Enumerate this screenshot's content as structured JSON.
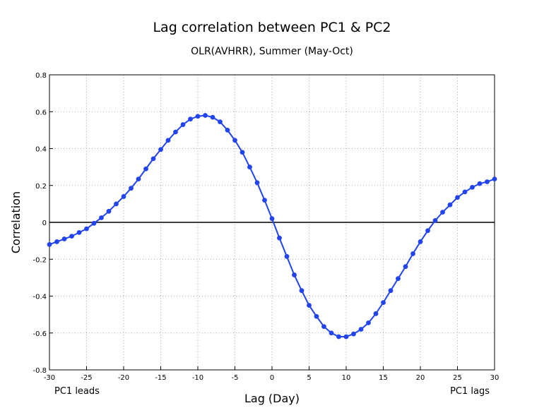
{
  "chart_data": {
    "type": "line",
    "title": "Lag correlation between PC1 & PC2",
    "subtitle": "OLR(AVHRR), Summer (May-Oct)",
    "xlabel": "Lag (Day)",
    "ylabel": "Correlation",
    "xlim": [
      -30,
      30
    ],
    "ylim": [
      -0.8,
      0.8
    ],
    "grid": true,
    "x_ticks": [
      -30,
      -25,
      -20,
      -15,
      -10,
      -5,
      0,
      5,
      10,
      15,
      20,
      25,
      30
    ],
    "x_tick_labels": [
      "-30",
      "-25",
      "-20",
      "-15",
      "-10",
      "-5",
      "0",
      "5",
      "10",
      "15",
      "20",
      "25",
      "30"
    ],
    "y_ticks": [
      -0.8,
      -0.6,
      -0.4,
      -0.2,
      0,
      0.2,
      0.4,
      0.6,
      0.8
    ],
    "y_tick_labels": [
      "-0.8",
      "-0.6",
      "-0.4",
      "-0.2",
      "0",
      "0.2",
      "0.4",
      "0.6",
      "0.8"
    ],
    "annotations": {
      "left": "PC1 leads",
      "right": "PC1 lags"
    },
    "line_color": "#2244ee",
    "series": [
      {
        "name": "Lag correlation",
        "x": [
          -30,
          -29,
          -28,
          -27,
          -26,
          -25,
          -24,
          -23,
          -22,
          -21,
          -20,
          -19,
          -18,
          -17,
          -16,
          -15,
          -14,
          -13,
          -12,
          -11,
          -10,
          -9,
          -8,
          -7,
          -6,
          -5,
          -4,
          -3,
          -2,
          -1,
          0,
          1,
          2,
          3,
          4,
          5,
          6,
          7,
          8,
          9,
          10,
          11,
          12,
          13,
          14,
          15,
          16,
          17,
          18,
          19,
          20,
          21,
          22,
          23,
          24,
          25,
          26,
          27,
          28,
          29,
          30
        ],
        "y": [
          -0.12,
          -0.105,
          -0.09,
          -0.075,
          -0.055,
          -0.035,
          -0.005,
          0.025,
          0.06,
          0.1,
          0.14,
          0.185,
          0.235,
          0.29,
          0.345,
          0.395,
          0.445,
          0.49,
          0.53,
          0.56,
          0.575,
          0.58,
          0.57,
          0.545,
          0.5,
          0.445,
          0.38,
          0.3,
          0.215,
          0.12,
          0.02,
          -0.085,
          -0.185,
          -0.285,
          -0.37,
          -0.45,
          -0.51,
          -0.565,
          -0.6,
          -0.62,
          -0.62,
          -0.605,
          -0.58,
          -0.545,
          -0.495,
          -0.435,
          -0.37,
          -0.305,
          -0.24,
          -0.17,
          -0.105,
          -0.045,
          0.01,
          0.055,
          0.095,
          0.135,
          0.165,
          0.19,
          0.21,
          0.22,
          0.235
        ]
      }
    ]
  }
}
